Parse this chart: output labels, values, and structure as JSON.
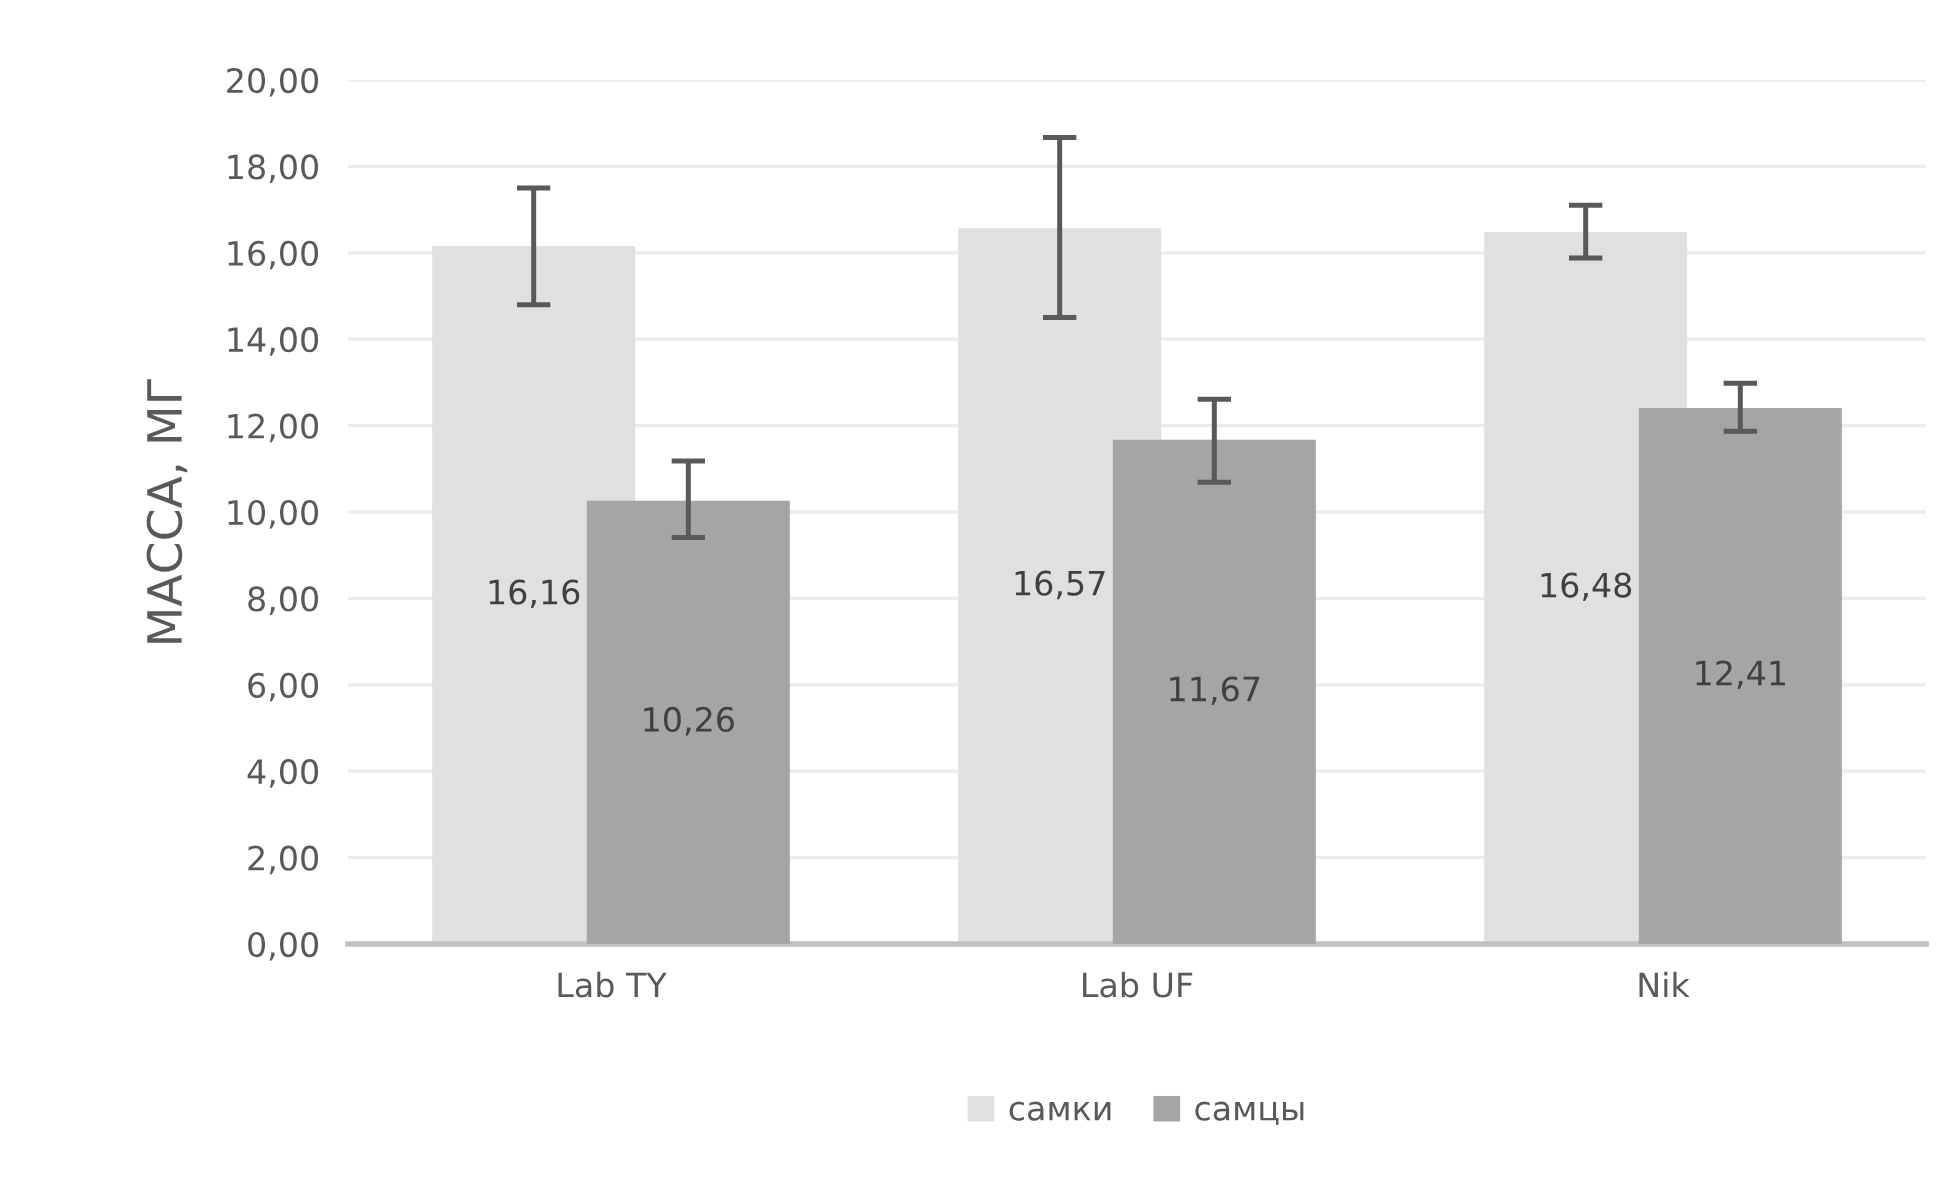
{
  "chart_data": {
    "type": "bar",
    "ylabel": "МАССА, МГ",
    "categories": [
      "Lab TY",
      "Lab UF",
      "Nik"
    ],
    "series": [
      {
        "name": "самки",
        "color": "#e0e0e0",
        "values": [
          16.16,
          16.57,
          16.48
        ],
        "value_labels": [
          "16,16",
          "16,57",
          "16,48"
        ],
        "errors": [
          [
            14.8,
            17.5
          ],
          [
            14.5,
            18.67
          ],
          [
            15.88,
            17.1
          ]
        ]
      },
      {
        "name": "самцы",
        "color": "#a5a5a5",
        "values": [
          10.26,
          11.67,
          12.41
        ],
        "value_labels": [
          "10,26",
          "11,67",
          "12,41"
        ],
        "errors": [
          [
            9.41,
            11.18
          ],
          [
            10.69,
            12.61
          ],
          [
            11.87,
            12.98
          ]
        ]
      }
    ],
    "ylim": [
      0,
      20
    ],
    "yticks": [
      {
        "value": 0,
        "label": "0,00"
      },
      {
        "value": 2,
        "label": "2,00"
      },
      {
        "value": 4,
        "label": "4,00"
      },
      {
        "value": 6,
        "label": "6,00"
      },
      {
        "value": 8,
        "label": "8,00"
      },
      {
        "value": 10,
        "label": "10,00"
      },
      {
        "value": 12,
        "label": "12,00"
      },
      {
        "value": 14,
        "label": "14,00"
      },
      {
        "value": 16,
        "label": "16,00"
      },
      {
        "value": 18,
        "label": "18,00"
      },
      {
        "value": 20,
        "label": "20,00"
      }
    ],
    "grid": "y",
    "legend": "bottom"
  }
}
